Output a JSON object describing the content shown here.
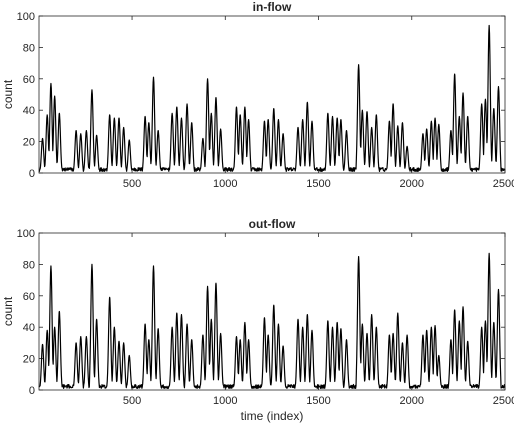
{
  "chart_data": [
    {
      "type": "line",
      "title": "in-flow",
      "xlabel": "",
      "ylabel": "count",
      "xlim": [
        1,
        2500
      ],
      "ylim": [
        0,
        100
      ],
      "xticks": [
        500,
        1000,
        1500,
        2000,
        2500
      ],
      "yticks": [
        0,
        20,
        40,
        60,
        80,
        100
      ],
      "grid": false,
      "series": [
        {
          "color": "#000000",
          "peaks": [
            {
              "x": 20,
              "y": 22
            },
            {
              "x": 45,
              "y": 37
            },
            {
              "x": 65,
              "y": 57
            },
            {
              "x": 85,
              "y": 49
            },
            {
              "x": 110,
              "y": 38
            },
            {
              "x": 200,
              "y": 27
            },
            {
              "x": 225,
              "y": 25
            },
            {
              "x": 255,
              "y": 27
            },
            {
              "x": 285,
              "y": 53
            },
            {
              "x": 310,
              "y": 24
            },
            {
              "x": 380,
              "y": 37
            },
            {
              "x": 405,
              "y": 35
            },
            {
              "x": 430,
              "y": 35
            },
            {
              "x": 455,
              "y": 29
            },
            {
              "x": 485,
              "y": 21
            },
            {
              "x": 570,
              "y": 36
            },
            {
              "x": 590,
              "y": 32
            },
            {
              "x": 615,
              "y": 61
            },
            {
              "x": 640,
              "y": 27
            },
            {
              "x": 715,
              "y": 38
            },
            {
              "x": 740,
              "y": 42
            },
            {
              "x": 765,
              "y": 35
            },
            {
              "x": 795,
              "y": 44
            },
            {
              "x": 820,
              "y": 32
            },
            {
              "x": 880,
              "y": 22
            },
            {
              "x": 905,
              "y": 60
            },
            {
              "x": 925,
              "y": 38
            },
            {
              "x": 950,
              "y": 48
            },
            {
              "x": 975,
              "y": 28
            },
            {
              "x": 1060,
              "y": 42
            },
            {
              "x": 1080,
              "y": 37
            },
            {
              "x": 1105,
              "y": 42
            },
            {
              "x": 1125,
              "y": 34
            },
            {
              "x": 1210,
              "y": 33
            },
            {
              "x": 1230,
              "y": 34
            },
            {
              "x": 1260,
              "y": 41
            },
            {
              "x": 1285,
              "y": 34
            },
            {
              "x": 1310,
              "y": 25
            },
            {
              "x": 1390,
              "y": 29
            },
            {
              "x": 1415,
              "y": 34
            },
            {
              "x": 1440,
              "y": 45
            },
            {
              "x": 1465,
              "y": 33
            },
            {
              "x": 1550,
              "y": 38
            },
            {
              "x": 1575,
              "y": 36
            },
            {
              "x": 1600,
              "y": 35
            },
            {
              "x": 1620,
              "y": 34
            },
            {
              "x": 1650,
              "y": 27
            },
            {
              "x": 1715,
              "y": 69
            },
            {
              "x": 1735,
              "y": 40
            },
            {
              "x": 1760,
              "y": 39
            },
            {
              "x": 1785,
              "y": 29
            },
            {
              "x": 1810,
              "y": 37
            },
            {
              "x": 1880,
              "y": 33
            },
            {
              "x": 1900,
              "y": 44
            },
            {
              "x": 1925,
              "y": 30
            },
            {
              "x": 1950,
              "y": 32
            },
            {
              "x": 1975,
              "y": 17
            },
            {
              "x": 2060,
              "y": 25
            },
            {
              "x": 2080,
              "y": 28
            },
            {
              "x": 2105,
              "y": 33
            },
            {
              "x": 2125,
              "y": 35
            },
            {
              "x": 2145,
              "y": 31
            },
            {
              "x": 2210,
              "y": 27
            },
            {
              "x": 2230,
              "y": 63
            },
            {
              "x": 2255,
              "y": 36
            },
            {
              "x": 2275,
              "y": 51
            },
            {
              "x": 2300,
              "y": 36
            },
            {
              "x": 2375,
              "y": 44
            },
            {
              "x": 2395,
              "y": 47
            },
            {
              "x": 2415,
              "y": 94
            },
            {
              "x": 2440,
              "y": 41
            },
            {
              "x": 2465,
              "y": 55
            }
          ]
        }
      ]
    },
    {
      "type": "line",
      "title": "out-flow",
      "xlabel": "time (index)",
      "ylabel": "count",
      "xlim": [
        1,
        2500
      ],
      "ylim": [
        0,
        100
      ],
      "xticks": [
        500,
        1000,
        1500,
        2000,
        2500
      ],
      "yticks": [
        0,
        20,
        40,
        60,
        80,
        100
      ],
      "grid": false,
      "series": [
        {
          "color": "#000000",
          "peaks": [
            {
              "x": 20,
              "y": 29
            },
            {
              "x": 45,
              "y": 38
            },
            {
              "x": 65,
              "y": 79
            },
            {
              "x": 85,
              "y": 40
            },
            {
              "x": 110,
              "y": 50
            },
            {
              "x": 200,
              "y": 30
            },
            {
              "x": 225,
              "y": 34
            },
            {
              "x": 255,
              "y": 34
            },
            {
              "x": 285,
              "y": 80
            },
            {
              "x": 310,
              "y": 45
            },
            {
              "x": 380,
              "y": 59
            },
            {
              "x": 405,
              "y": 40
            },
            {
              "x": 430,
              "y": 31
            },
            {
              "x": 455,
              "y": 30
            },
            {
              "x": 485,
              "y": 22
            },
            {
              "x": 570,
              "y": 42
            },
            {
              "x": 590,
              "y": 32
            },
            {
              "x": 615,
              "y": 79
            },
            {
              "x": 640,
              "y": 39
            },
            {
              "x": 715,
              "y": 40
            },
            {
              "x": 740,
              "y": 49
            },
            {
              "x": 765,
              "y": 48
            },
            {
              "x": 795,
              "y": 42
            },
            {
              "x": 820,
              "y": 32
            },
            {
              "x": 880,
              "y": 35
            },
            {
              "x": 905,
              "y": 66
            },
            {
              "x": 925,
              "y": 45
            },
            {
              "x": 950,
              "y": 68
            },
            {
              "x": 975,
              "y": 36
            },
            {
              "x": 1060,
              "y": 34
            },
            {
              "x": 1080,
              "y": 32
            },
            {
              "x": 1105,
              "y": 43
            },
            {
              "x": 1125,
              "y": 32
            },
            {
              "x": 1210,
              "y": 46
            },
            {
              "x": 1230,
              "y": 35
            },
            {
              "x": 1260,
              "y": 54
            },
            {
              "x": 1285,
              "y": 42
            },
            {
              "x": 1310,
              "y": 28
            },
            {
              "x": 1390,
              "y": 45
            },
            {
              "x": 1415,
              "y": 40
            },
            {
              "x": 1440,
              "y": 48
            },
            {
              "x": 1465,
              "y": 38
            },
            {
              "x": 1550,
              "y": 44
            },
            {
              "x": 1575,
              "y": 40
            },
            {
              "x": 1600,
              "y": 43
            },
            {
              "x": 1620,
              "y": 39
            },
            {
              "x": 1650,
              "y": 32
            },
            {
              "x": 1715,
              "y": 85
            },
            {
              "x": 1735,
              "y": 42
            },
            {
              "x": 1760,
              "y": 36
            },
            {
              "x": 1785,
              "y": 48
            },
            {
              "x": 1810,
              "y": 40
            },
            {
              "x": 1880,
              "y": 35
            },
            {
              "x": 1900,
              "y": 36
            },
            {
              "x": 1925,
              "y": 49
            },
            {
              "x": 1950,
              "y": 30
            },
            {
              "x": 1975,
              "y": 35
            },
            {
              "x": 2060,
              "y": 35
            },
            {
              "x": 2080,
              "y": 38
            },
            {
              "x": 2105,
              "y": 40
            },
            {
              "x": 2125,
              "y": 41
            },
            {
              "x": 2145,
              "y": 22
            },
            {
              "x": 2210,
              "y": 32
            },
            {
              "x": 2230,
              "y": 51
            },
            {
              "x": 2255,
              "y": 44
            },
            {
              "x": 2275,
              "y": 53
            },
            {
              "x": 2300,
              "y": 31
            },
            {
              "x": 2375,
              "y": 40
            },
            {
              "x": 2395,
              "y": 44
            },
            {
              "x": 2415,
              "y": 87
            },
            {
              "x": 2440,
              "y": 43
            },
            {
              "x": 2465,
              "y": 64
            }
          ]
        }
      ]
    }
  ]
}
